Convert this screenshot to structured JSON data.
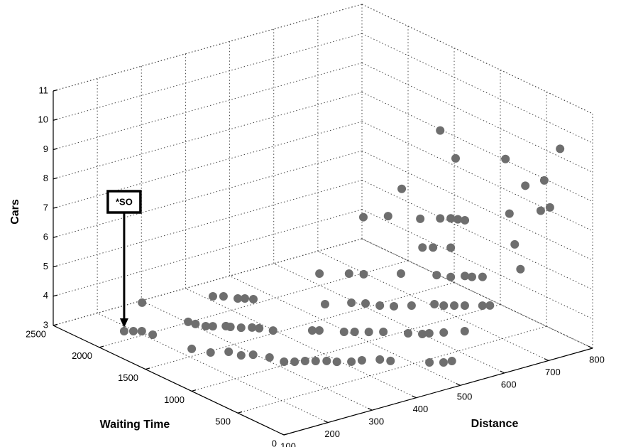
{
  "chart_data": {
    "type": "scatter3d",
    "xlabel": "Distance",
    "ylabel": "Waiting Time",
    "zlabel": "Cars",
    "xlim": [
      100,
      800
    ],
    "ylim": [
      0,
      2500
    ],
    "zlim": [
      3,
      11
    ],
    "xticks": [
      100,
      200,
      300,
      400,
      500,
      600,
      700,
      800
    ],
    "yticks": [
      0,
      500,
      1000,
      1500,
      2000,
      2500
    ],
    "zticks": [
      3,
      4,
      5,
      6,
      7,
      8,
      9,
      10,
      11
    ],
    "grid": true,
    "color": "#6e6e6e",
    "annotation": "*SO",
    "x": [
      184,
      197,
      209,
      214,
      295,
      303,
      307,
      315,
      325,
      344,
      348,
      361,
      377,
      385,
      398,
      415,
      430,
      444,
      454,
      464,
      227,
      243,
      271,
      278,
      297,
      312,
      320,
      335,
      352,
      367,
      383,
      395,
      416,
      435,
      463,
      474,
      525,
      545,
      561,
      454,
      464,
      495,
      510,
      530,
      551,
      582,
      600,
      612,
      635,
      669,
      635,
      677,
      696,
      751,
      551,
      593,
      611,
      625,
      643,
      670,
      707,
      716,
      731,
      746,
      771,
      782,
      594,
      650,
      681,
      723,
      728,
      752,
      559,
      594,
      559,
      583,
      599,
      615,
      583,
      551,
      583,
      615,
      631,
      655,
      707,
      716,
      728,
      741,
      752,
      787,
      795,
      766,
      789
    ],
    "y": [
      2133,
      2095,
      2061,
      1967,
      2469,
      2008,
      1948,
      1875,
      1846,
      1795,
      1765,
      1711,
      1669,
      1630,
      1542,
      2275,
      2232,
      2144,
      2115,
      2071,
      1606,
      1478,
      1416,
      1314,
      1275,
      1169,
      1050,
      1007,
      975,
      932,
      889,
      836,
      779,
      756,
      695,
      632,
      454,
      397,
      383,
      1385,
      1356,
      1236,
      1193,
      1135,
      1078,
      958,
      890,
      872,
      825,
      760,
      2172,
      2052,
      1984,
      1843,
      1710,
      1625,
      1558,
      1470,
      1403,
      1341,
      1270,
      1212,
      1170,
      1127,
      1055,
      1027,
      1500,
      1500,
      1500,
      1500,
      1500,
      1500,
      500,
      500,
      500,
      500,
      500,
      500,
      500,
      500,
      500,
      500,
      500,
      500,
      500,
      500,
      500,
      500,
      500,
      500,
      500,
      300,
      300
    ],
    "z": [
      3,
      3,
      3,
      3,
      3,
      3,
      3,
      3,
      3,
      3,
      3,
      3,
      3,
      3,
      3,
      3,
      3,
      3,
      3,
      3,
      3,
      3,
      3,
      3,
      3,
      3,
      3,
      3,
      3,
      3,
      3,
      3,
      3,
      3,
      3,
      3,
      3,
      3,
      3,
      3,
      3,
      3,
      3,
      3,
      3,
      3,
      3,
      3,
      3,
      3,
      3,
      3,
      3,
      3,
      3,
      3,
      3,
      3,
      3,
      3,
      3,
      3,
      3,
      3,
      3,
      3,
      6.1,
      5.9,
      6.7,
      5.5,
      4.5,
      4.4,
      10.7,
      9.6,
      7.7,
      7.6,
      7.5,
      7.4,
      6.6,
      5.8,
      5.6,
      5.5,
      5.4,
      5.3,
      9.1,
      7.2,
      6.1,
      5.2,
      8.0,
      7.0,
      8.0,
      7.5,
      9.4
    ]
  }
}
